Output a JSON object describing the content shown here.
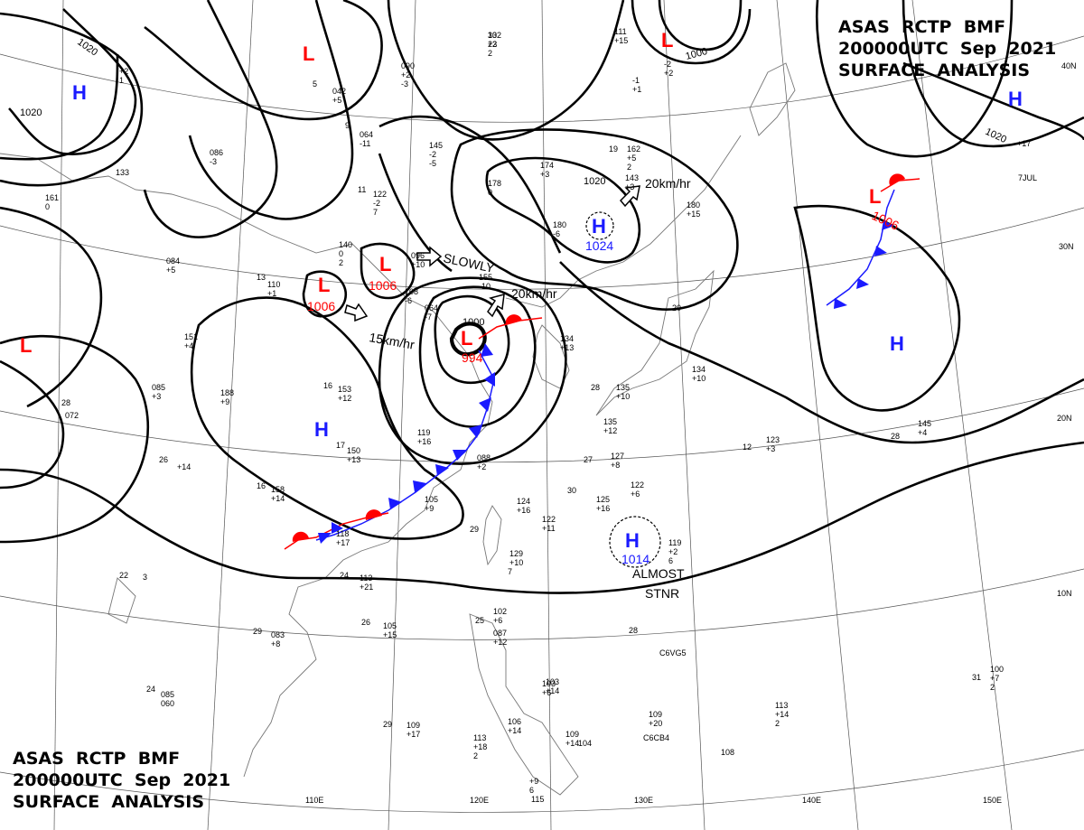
{
  "header": {
    "top_right": [
      "ASAS  RCTP  BMF",
      "200000UTC  Sep  2021",
      "SURFACE  ANALYSIS"
    ],
    "bottom_left": [
      "ASAS  RCTP  BMF",
      "200000UTC  Sep  2021",
      "SURFACE  ANALYSIS"
    ]
  },
  "lon_labels": [
    "110E",
    "120E",
    "130E",
    "140E",
    "150E"
  ],
  "lat_labels": [
    "40N",
    "30N",
    "20N",
    "10N"
  ],
  "isobar_labels": [
    "1020",
    "1020",
    "1000",
    "1020",
    "1020",
    "1000"
  ],
  "pressure_centers": [
    {
      "type": "H",
      "color": "#1a1aff",
      "value": ""
    },
    {
      "type": "L",
      "color": "#ff0000",
      "value": ""
    },
    {
      "type": "L",
      "color": "#ff0000",
      "value": ""
    },
    {
      "type": "H",
      "color": "#1a1aff",
      "value": ""
    },
    {
      "type": "L",
      "color": "#ff0000",
      "value": "1006"
    },
    {
      "type": "L",
      "color": "#ff0000",
      "value": "1006"
    },
    {
      "type": "L",
      "color": "#ff0000",
      "value": "1006"
    },
    {
      "type": "H",
      "color": "#1a1aff",
      "value": "1024"
    },
    {
      "type": "L",
      "color": "#ff0000",
      "value": "994"
    },
    {
      "type": "H",
      "color": "#1a1aff",
      "value": ""
    },
    {
      "type": "H",
      "color": "#1a1aff",
      "value": ""
    },
    {
      "type": "H",
      "color": "#1a1aff",
      "value": "1014"
    }
  ],
  "movements": [
    "SLOWLY",
    "20km/hr",
    "15km/hr",
    "20km/hr",
    "ALMOST",
    "STNR"
  ],
  "station_labels": [
    "132",
    "+3",
    "2",
    "090",
    "+2",
    "-3",
    "042",
    "+5",
    "064",
    "-11",
    "145",
    "-2",
    "-5",
    "122",
    "-2",
    "7",
    "140",
    "0",
    "2",
    "096",
    "+10",
    "155",
    "-10",
    "064",
    "-7",
    "174",
    "+3",
    "178",
    "0",
    "162",
    "+5",
    "2",
    "143",
    "+3",
    "180",
    "-6",
    "180",
    "+15",
    "111",
    "+15",
    "085",
    "+3",
    "-1",
    "+1",
    "-2",
    "+2",
    "086",
    "-3",
    "133",
    "161",
    "0",
    "110",
    "+1",
    "084",
    "+5",
    "108",
    "-6",
    "151",
    "+4",
    "188",
    "+9",
    "153",
    "+12",
    "150",
    "+13",
    "158",
    "+14",
    "119",
    "+16",
    "105",
    "+9",
    "118",
    "+17",
    "088",
    "+2",
    "124",
    "+16",
    "122",
    "+11",
    "129",
    "+10",
    "7",
    "113",
    "+21",
    "105",
    "+15",
    "083",
    "+8",
    "103",
    "+6",
    "125",
    "+16",
    "122",
    "+6",
    "127",
    "+8",
    "135",
    "+10",
    "134",
    "+13",
    "134",
    "+10",
    "123",
    "+3",
    "145",
    "+4",
    "135",
    "+12",
    "119",
    "+2",
    "6",
    "C6VG5",
    "109",
    "+20",
    "C6CB4",
    "108",
    "100",
    "+7",
    "2",
    "113",
    "+14",
    "2",
    "109",
    "+17",
    "113",
    "+18",
    "2",
    "106",
    "+14",
    "102",
    "+6",
    "087",
    "+12",
    "103",
    "+14",
    "109",
    "+14",
    "104",
    "+9",
    "6",
    "115",
    "+14",
    "3",
    "072",
    "085",
    "060",
    "+2",
    "1",
    "+17",
    "7JUL",
    "9",
    "5",
    "11",
    "13",
    "16",
    "17",
    "16",
    "28",
    "26",
    "22",
    "24",
    "29",
    "28",
    "30",
    "29",
    "27",
    "28",
    "20",
    "19",
    "12",
    "28",
    "31",
    "29",
    "25",
    "26",
    "24",
    "30",
    "22"
  ]
}
